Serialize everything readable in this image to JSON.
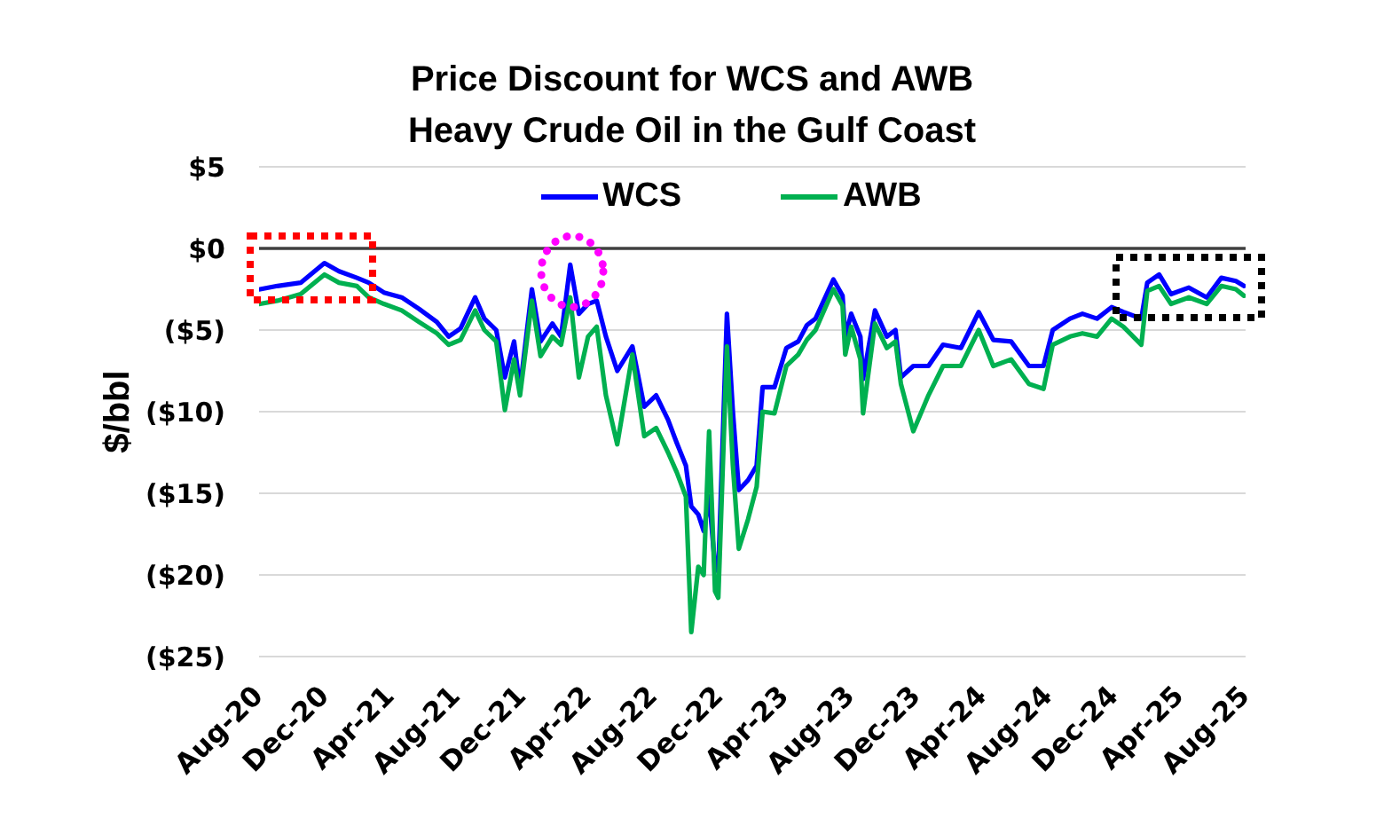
{
  "chart_data": {
    "type": "line",
    "title": "Price Discount for WCS and AWB\nHeavy Crude Oil in the Gulf Coast",
    "ylabel": "$/bbl",
    "x": [
      "2020-08-03",
      "2020-09-04",
      "2020-10-17",
      "2020-11-30",
      "2020-12-27",
      "2021-01-29",
      "2021-02-20",
      "2021-03-20",
      "2021-04-22",
      "2021-05-24",
      "2021-06-26",
      "2021-07-18",
      "2021-08-09",
      "2021-09-05",
      "2021-09-22",
      "2021-10-14",
      "2021-10-30",
      "2021-11-16",
      "2021-11-27",
      "2021-12-19",
      "2022-01-04",
      "2022-01-26",
      "2022-02-11",
      "2022-02-28",
      "2022-03-16",
      "2022-04-02",
      "2022-04-18",
      "2022-05-05",
      "2022-05-26",
      "2022-06-23",
      "2022-07-15",
      "2022-08-06",
      "2022-08-28",
      "2022-09-13",
      "2022-09-30",
      "2022-10-10",
      "2022-10-23",
      "2022-11-02",
      "2022-11-12",
      "2022-11-23",
      "2022-11-29",
      "2022-12-15",
      "2022-12-26",
      "2023-01-06",
      "2023-01-23",
      "2023-02-08",
      "2023-02-19",
      "2023-03-13",
      "2023-04-04",
      "2023-04-26",
      "2023-05-12",
      "2023-05-28",
      "2023-06-30",
      "2023-07-17",
      "2023-07-22",
      "2023-08-02",
      "2023-08-19",
      "2023-08-24",
      "2023-09-15",
      "2023-10-07",
      "2023-10-23",
      "2023-11-02",
      "2023-11-25",
      "2023-12-23",
      "2024-01-19",
      "2024-02-21",
      "2024-03-25",
      "2024-04-21",
      "2024-05-24",
      "2024-06-26",
      "2024-07-23",
      "2024-08-09",
      "2024-09-10",
      "2024-10-03",
      "2024-10-30",
      "2024-11-26",
      "2024-12-18",
      "2025-01-20",
      "2025-01-31",
      "2025-02-22",
      "2025-03-16",
      "2025-04-18",
      "2025-05-21",
      "2025-06-17",
      "2025-07-14",
      "2025-07-29"
    ],
    "series": [
      {
        "name": "WCS",
        "color": "#0000ff",
        "values": [
          -2.5,
          -2.3,
          -2.1,
          -0.9,
          -1.4,
          -1.8,
          -2.1,
          -2.7,
          -3.0,
          -3.7,
          -4.5,
          -5.4,
          -4.9,
          -3.0,
          -4.3,
          -5.0,
          -7.9,
          -5.7,
          -8.6,
          -2.5,
          -5.7,
          -4.6,
          -5.4,
          -1.0,
          -4.0,
          -3.4,
          -3.2,
          -5.4,
          -7.5,
          -6.0,
          -9.7,
          -9.0,
          -10.5,
          -11.9,
          -13.3,
          -15.8,
          -16.3,
          -17.3,
          -15.2,
          -19.5,
          -19.8,
          -4.0,
          -10.0,
          -14.8,
          -14.2,
          -13.3,
          -8.5,
          -8.5,
          -6.1,
          -5.7,
          -4.7,
          -4.3,
          -1.9,
          -2.9,
          -5.4,
          -4.0,
          -5.4,
          -8.0,
          -3.8,
          -5.4,
          -5.0,
          -7.9,
          -7.2,
          -7.2,
          -5.9,
          -6.1,
          -3.9,
          -5.6,
          -5.7,
          -7.2,
          -7.2,
          -5.0,
          -4.3,
          -4.0,
          -4.3,
          -3.6,
          -3.9,
          -4.3,
          -2.1,
          -1.6,
          -2.8,
          -2.4,
          -3.0,
          -1.8,
          -2.0,
          -2.3
        ]
      },
      {
        "name": "AWB",
        "color": "#00b050",
        "values": [
          -3.4,
          -3.2,
          -2.8,
          -1.6,
          -2.1,
          -2.3,
          -3.0,
          -3.4,
          -3.8,
          -4.5,
          -5.2,
          -5.9,
          -5.6,
          -3.8,
          -5.0,
          -5.7,
          -9.9,
          -6.8,
          -9.0,
          -3.2,
          -6.6,
          -5.4,
          -5.9,
          -3.0,
          -7.9,
          -5.4,
          -4.8,
          -9.0,
          -12.0,
          -6.5,
          -11.5,
          -11.0,
          -12.5,
          -13.7,
          -15.2,
          -23.5,
          -19.5,
          -20.0,
          -11.2,
          -21.0,
          -21.4,
          -6.0,
          -13.3,
          -18.4,
          -16.6,
          -14.6,
          -10.0,
          -10.1,
          -7.2,
          -6.5,
          -5.6,
          -5.0,
          -2.5,
          -3.5,
          -6.5,
          -4.8,
          -6.8,
          -10.1,
          -4.6,
          -6.1,
          -5.7,
          -8.3,
          -11.2,
          -9.0,
          -7.2,
          -7.2,
          -5.0,
          -7.2,
          -6.8,
          -8.3,
          -8.6,
          -5.9,
          -5.4,
          -5.2,
          -5.4,
          -4.3,
          -4.8,
          -5.9,
          -2.6,
          -2.3,
          -3.4,
          -3.0,
          -3.4,
          -2.3,
          -2.5,
          -2.9
        ]
      }
    ],
    "xlim": [
      "2020-08",
      "2025-08"
    ],
    "xticks": [
      {
        "value": "2020-08",
        "label": "Aug-20"
      },
      {
        "value": "2020-12",
        "label": "Dec-20"
      },
      {
        "value": "2021-04",
        "label": "Apr-21"
      },
      {
        "value": "2021-08",
        "label": "Aug-21"
      },
      {
        "value": "2021-12",
        "label": "Dec-21"
      },
      {
        "value": "2022-04",
        "label": "Apr-22"
      },
      {
        "value": "2022-08",
        "label": "Aug-22"
      },
      {
        "value": "2022-12",
        "label": "Dec-22"
      },
      {
        "value": "2023-04",
        "label": "Apr-23"
      },
      {
        "value": "2023-08",
        "label": "Aug-23"
      },
      {
        "value": "2023-12",
        "label": "Dec-23"
      },
      {
        "value": "2024-04",
        "label": "Apr-24"
      },
      {
        "value": "2024-08",
        "label": "Aug-24"
      },
      {
        "value": "2024-12",
        "label": "Dec-24"
      },
      {
        "value": "2025-04",
        "label": "Apr-25"
      },
      {
        "value": "2025-08",
        "label": "Aug-25"
      }
    ],
    "ylim": [
      -25,
      5
    ],
    "yticks": [
      {
        "value": 5,
        "label": "$5"
      },
      {
        "value": 0,
        "label": "$0"
      },
      {
        "value": -5,
        "label": "($5)"
      },
      {
        "value": -10,
        "label": "($10)"
      },
      {
        "value": -15,
        "label": "($15)"
      },
      {
        "value": -20,
        "label": "($20)"
      },
      {
        "value": -25,
        "label": "($25)"
      }
    ],
    "grid": "y",
    "legend": "top",
    "marker": "none",
    "line_style": "solid",
    "ref_lines": [
      {
        "axis": "y",
        "value": 0,
        "color": "#404040"
      }
    ]
  }
}
